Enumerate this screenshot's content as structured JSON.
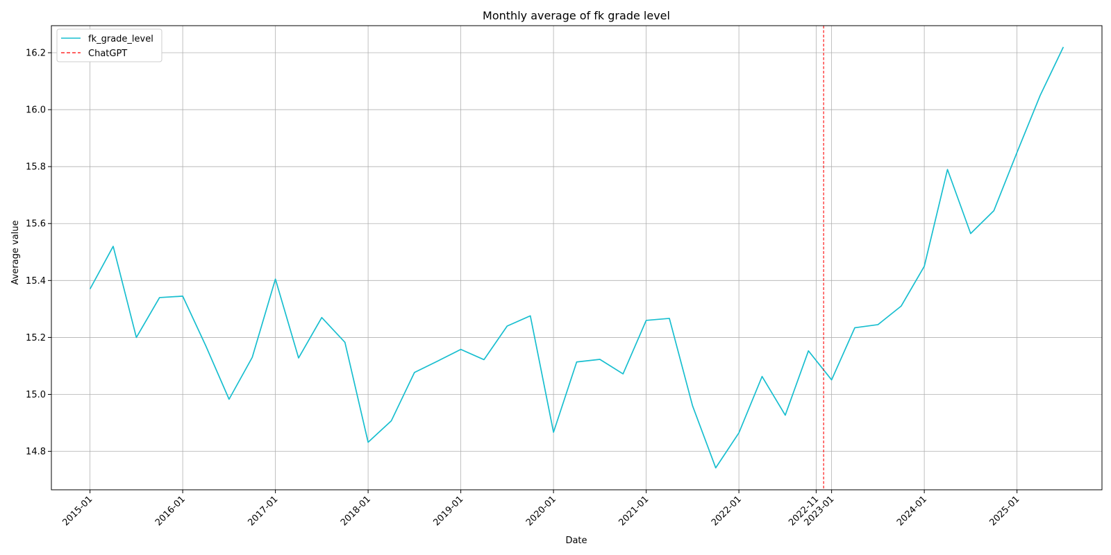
{
  "chart_data": {
    "type": "line",
    "title": "Monthly average of fk grade level",
    "xlabel": "Date",
    "ylabel": "Average value",
    "ylim": [
      14.665,
      16.295
    ],
    "xlim": [
      "2014-08-01",
      "2025-12-01"
    ],
    "grid": true,
    "legend_position": "top-left",
    "x_ticks": [
      "2015-01",
      "2016-01",
      "2017-01",
      "2018-01",
      "2019-01",
      "2020-01",
      "2021-01",
      "2022-01",
      "2022-11",
      "2023-01",
      "2024-01",
      "2025-01"
    ],
    "y_ticks": [
      "14.8",
      "15.0",
      "15.2",
      "15.4",
      "15.6",
      "15.8",
      "16.0",
      "16.2"
    ],
    "series": [
      {
        "name": "fk_grade_level",
        "color": "#17becf",
        "x": [
          "2015-01",
          "2015-04",
          "2015-07",
          "2015-10",
          "2016-01",
          "2016-04",
          "2016-07",
          "2016-10",
          "2017-01",
          "2017-04",
          "2017-07",
          "2017-10",
          "2018-01",
          "2018-04",
          "2018-07",
          "2018-10",
          "2019-01",
          "2019-04",
          "2019-07",
          "2019-10",
          "2020-01",
          "2020-04",
          "2020-07",
          "2020-10",
          "2021-01",
          "2021-04",
          "2021-07",
          "2021-10",
          "2022-01",
          "2022-04",
          "2022-07",
          "2022-10",
          "2023-01",
          "2023-04",
          "2023-07",
          "2023-10",
          "2024-01",
          "2024-04",
          "2024-07",
          "2024-10",
          "2025-01",
          "2025-04",
          "2025-07"
        ],
        "values": [
          15.37,
          15.52,
          15.2,
          15.34,
          15.345,
          15.17,
          14.983,
          15.13,
          15.405,
          15.128,
          15.27,
          15.183,
          14.832,
          14.907,
          15.077,
          15.117,
          15.158,
          15.122,
          15.24,
          15.276,
          14.867,
          15.114,
          15.123,
          15.072,
          15.26,
          15.267,
          14.96,
          14.742,
          14.865,
          15.063,
          14.927,
          15.153,
          15.051,
          15.234,
          15.245,
          15.31,
          15.45,
          15.79,
          15.565,
          15.645,
          15.85,
          16.05,
          16.22
        ]
      }
    ],
    "annotations": [
      {
        "name": "ChatGPT",
        "type": "vline",
        "x": "2022-11-30",
        "color": "#ff0000",
        "style": "dashed"
      }
    ]
  }
}
